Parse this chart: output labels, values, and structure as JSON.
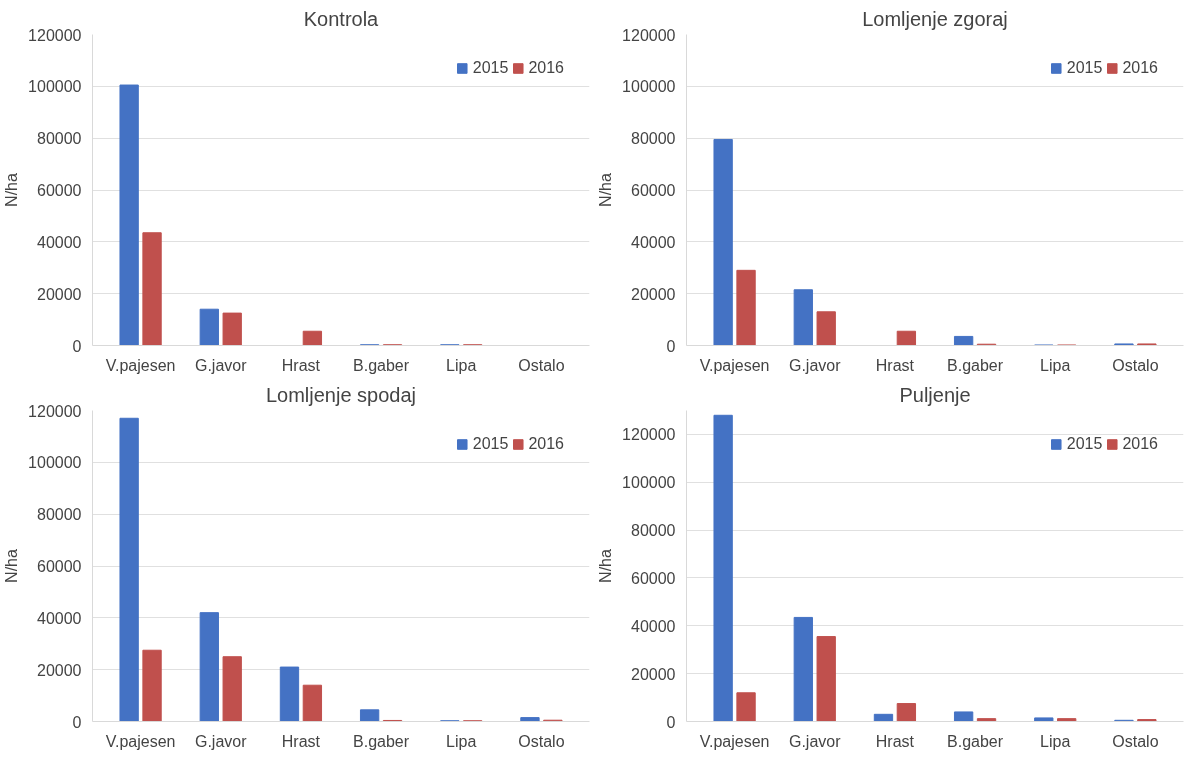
{
  "chart_data": [
    {
      "type": "bar",
      "title": "Kontrola",
      "ylabel": "N/ha",
      "categories": [
        "V.pajesen",
        "G.javor",
        "Hrast",
        "B.gaber",
        "Lipa",
        "Ostalo"
      ],
      "ylim": [
        0,
        120000
      ],
      "yticks": [
        0,
        20000,
        40000,
        60000,
        80000,
        100000,
        120000
      ],
      "grid": "y",
      "legend": "top right",
      "series": [
        {
          "name": "2015",
          "color": "#4472c4",
          "values": [
            100500,
            14000,
            0,
            300,
            300,
            0
          ]
        },
        {
          "name": "2016",
          "color": "#c0504d",
          "values": [
            43500,
            12500,
            5500,
            300,
            300,
            0
          ]
        }
      ]
    },
    {
      "type": "bar",
      "title": "Lomljenje zgoraj",
      "ylabel": "N/ha",
      "categories": [
        "V.pajesen",
        "G.javor",
        "Hrast",
        "B.gaber",
        "Lipa",
        "Ostalo"
      ],
      "ylim": [
        0,
        120000
      ],
      "yticks": [
        0,
        20000,
        40000,
        60000,
        80000,
        100000,
        120000
      ],
      "grid": "y",
      "legend": "top right",
      "series": [
        {
          "name": "2015",
          "color": "#4472c4",
          "values": [
            79500,
            21500,
            0,
            3500,
            200,
            600
          ]
        },
        {
          "name": "2016",
          "color": "#c0504d",
          "values": [
            29000,
            13000,
            5500,
            500,
            200,
            600
          ]
        }
      ]
    },
    {
      "type": "bar",
      "title": "Lomljenje spodaj",
      "ylabel": "N/ha",
      "categories": [
        "V.pajesen",
        "G.javor",
        "Hrast",
        "B.gaber",
        "Lipa",
        "Ostalo"
      ],
      "ylim": [
        0,
        120000
      ],
      "yticks": [
        0,
        20000,
        40000,
        60000,
        80000,
        100000,
        120000
      ],
      "grid": "y",
      "legend": "top right",
      "series": [
        {
          "name": "2015",
          "color": "#4472c4",
          "values": [
            117000,
            42000,
            21000,
            4500,
            300,
            1500
          ]
        },
        {
          "name": "2016",
          "color": "#c0504d",
          "values": [
            27500,
            25000,
            14000,
            400,
            300,
            500
          ]
        }
      ]
    },
    {
      "type": "bar",
      "title": "Puljenje",
      "ylabel": "N/ha",
      "categories": [
        "V.pajesen",
        "G.javor",
        "Hrast",
        "B.gaber",
        "Lipa",
        "Ostalo"
      ],
      "ylim": [
        0,
        130000
      ],
      "yticks": [
        0,
        20000,
        40000,
        60000,
        80000,
        100000,
        120000
      ],
      "grid": "y",
      "legend": "top right",
      "series": [
        {
          "name": "2015",
          "color": "#4472c4",
          "values": [
            128000,
            43500,
            3000,
            4000,
            1500,
            500
          ]
        },
        {
          "name": "2016",
          "color": "#c0504d",
          "values": [
            12000,
            35500,
            7500,
            1200,
            1200,
            800
          ]
        }
      ]
    }
  ]
}
